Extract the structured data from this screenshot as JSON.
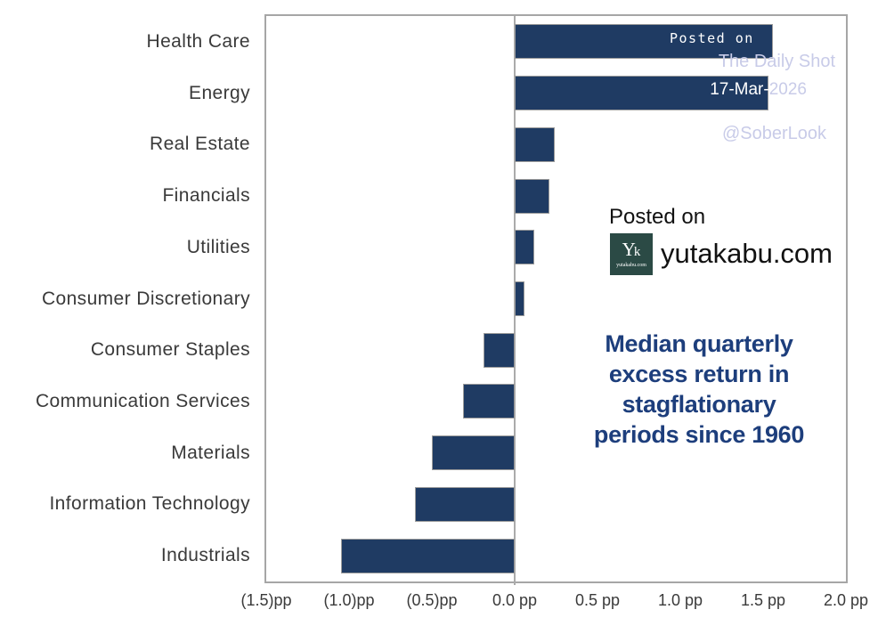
{
  "chart_data": {
    "type": "bar",
    "orientation": "horizontal",
    "title": "Median quarterly excess return in stagflationary periods since 1960",
    "title_lines": [
      "Median quarterly",
      "excess return in",
      "stagflationary",
      "periods since 1960"
    ],
    "unit": "pp",
    "categories": [
      "Health Care",
      "Energy",
      "Real Estate",
      "Financials",
      "Utilities",
      "Consumer Discretionary",
      "Consumer Staples",
      "Communication Services",
      "Materials",
      "Information Technology",
      "Industrials"
    ],
    "values": [
      1.56,
      1.53,
      0.24,
      0.21,
      0.12,
      0.06,
      -0.19,
      -0.31,
      -0.5,
      -0.6,
      -1.05
    ],
    "xlim": [
      -1.5,
      2.0
    ],
    "x_tick_values": [
      -1.5,
      -1.0,
      -0.5,
      0.0,
      0.5,
      1.0,
      1.5,
      2.0
    ],
    "x_tick_labels": [
      "(1.5)pp",
      "(1.0)pp",
      "(0.5)pp",
      "0.0 pp",
      "0.5 pp",
      "1.0 pp",
      "1.5 pp",
      "2.0 pp"
    ],
    "grid": false,
    "legend": "none",
    "bar_color": "#1f3b63",
    "bar_border_color": "#9b9b9b",
    "title_color": "#1d3e7c",
    "axis_color": "#a6a6a6",
    "label_color": "#3a3a3a"
  },
  "watermarks": {
    "posted_on_bar": "Posted on",
    "daily_shot": "The Daily Shot",
    "date_on_bar": "17-Mar-",
    "date_year": "2026",
    "sober_look": "@SoberLook",
    "lavender_color": "#c8cbe8",
    "white_color": "#ffffff"
  },
  "overlay": {
    "posted_on": "Posted on",
    "site": "yutakabu.com",
    "logo_monogram_main": "Y",
    "logo_monogram_sub": "k",
    "logo_caption": "yutakabu.com",
    "logo_bg": "#2b4a45"
  }
}
